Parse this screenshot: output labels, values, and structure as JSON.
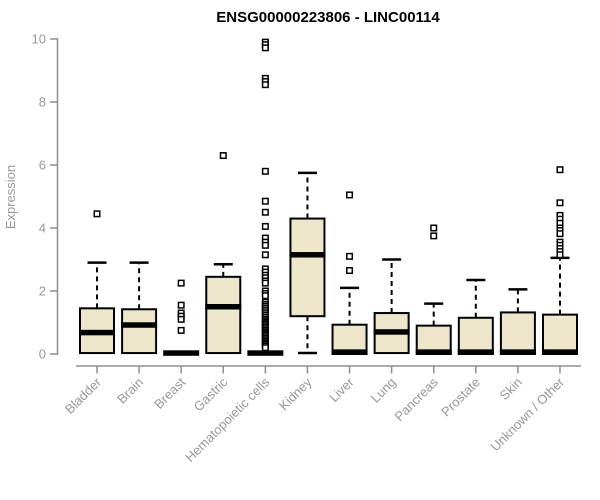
{
  "colors": {
    "box_fill": "#EDE6CA",
    "box_border": "#000000",
    "median": "#000000",
    "axis_line": "#8f8f8f",
    "axis_text": "#989898",
    "title_text": "#000000",
    "background": "#ffffff"
  },
  "chart_data": {
    "type": "box",
    "title": "ENSG00000223806 - LINC00114",
    "ylabel": "Expression",
    "xlabel": "",
    "ylim": [
      0,
      10
    ],
    "yticks": [
      0,
      2,
      4,
      6,
      8,
      10
    ],
    "grid": false,
    "legend": "none",
    "categories": [
      "Bladder",
      "Brain",
      "Breast",
      "Gastric",
      "Hematopoietic cells",
      "Kidney",
      "Liver",
      "Lung",
      "Pancreas",
      "Prostate",
      "Skin",
      "Unknown / Other"
    ],
    "series": [
      {
        "name": "Bladder",
        "collapsed": false,
        "whisker_low": null,
        "q1": 0.03,
        "median": 0.68,
        "q3": 1.45,
        "whisker_high": 2.9,
        "outliers": [
          4.45
        ]
      },
      {
        "name": "Brain",
        "collapsed": false,
        "whisker_low": null,
        "q1": 0.03,
        "median": 0.92,
        "q3": 1.42,
        "whisker_high": 2.9,
        "outliers": []
      },
      {
        "name": "Breast",
        "collapsed": true,
        "whisker_low": null,
        "q1": 0.03,
        "median": 0.03,
        "q3": 0.03,
        "whisker_high": null,
        "outliers": [
          2.25,
          1.55,
          1.3,
          1.2,
          1.1,
          0.75
        ]
      },
      {
        "name": "Gastric",
        "collapsed": false,
        "whisker_low": null,
        "q1": 0.03,
        "median": 1.5,
        "q3": 2.45,
        "whisker_high": 2.85,
        "outliers": [
          6.3
        ]
      },
      {
        "name": "Hematopoietic cells",
        "collapsed": true,
        "whisker_low": null,
        "q1": 0.03,
        "median": 0.03,
        "q3": 0.03,
        "whisker_high": null,
        "outliers": [
          9.9,
          9.82,
          9.72,
          8.75,
          8.65,
          8.55,
          5.8,
          4.85,
          4.5,
          4.05,
          3.68,
          3.55,
          3.45,
          3.15,
          2.7,
          2.6,
          2.5,
          2.42,
          2.32,
          2.25,
          2.0,
          1.92,
          1.85,
          1.65,
          1.58,
          1.52,
          1.46,
          1.4,
          1.34,
          1.28,
          1.22,
          1.16,
          1.1,
          1.05,
          1.0,
          0.95,
          0.9,
          0.85,
          0.8,
          0.75,
          0.7,
          0.65,
          0.6,
          0.55,
          0.5,
          0.45,
          0.4,
          0.35,
          0.3,
          0.25,
          0.2
        ]
      },
      {
        "name": "Kidney",
        "collapsed": false,
        "whisker_low": 0.03,
        "q1": 1.2,
        "median": 3.15,
        "q3": 4.3,
        "whisker_high": 5.75,
        "outliers": []
      },
      {
        "name": "Liver",
        "collapsed": false,
        "whisker_low": null,
        "q1": 0.0,
        "median": 0.06,
        "q3": 0.93,
        "whisker_high": 2.1,
        "outliers": [
          5.05,
          3.1,
          2.65
        ]
      },
      {
        "name": "Lung",
        "collapsed": false,
        "whisker_low": null,
        "q1": 0.03,
        "median": 0.7,
        "q3": 1.3,
        "whisker_high": 3.0,
        "outliers": []
      },
      {
        "name": "Pancreas",
        "collapsed": false,
        "whisker_low": null,
        "q1": 0.0,
        "median": 0.06,
        "q3": 0.9,
        "whisker_high": 1.6,
        "outliers": [
          4.0,
          3.75
        ]
      },
      {
        "name": "Prostate",
        "collapsed": false,
        "whisker_low": null,
        "q1": 0.0,
        "median": 0.06,
        "q3": 1.15,
        "whisker_high": 2.35,
        "outliers": []
      },
      {
        "name": "Skin",
        "collapsed": false,
        "whisker_low": null,
        "q1": 0.0,
        "median": 0.06,
        "q3": 1.32,
        "whisker_high": 2.05,
        "outliers": []
      },
      {
        "name": "Unknown / Other",
        "collapsed": false,
        "whisker_low": null,
        "q1": 0.0,
        "median": 0.06,
        "q3": 1.25,
        "whisker_high": 3.05,
        "outliers": [
          5.85,
          4.8,
          4.4,
          4.28,
          4.15,
          4.0,
          3.92,
          3.82,
          3.55,
          3.45,
          3.35,
          3.25,
          3.15
        ]
      }
    ]
  }
}
